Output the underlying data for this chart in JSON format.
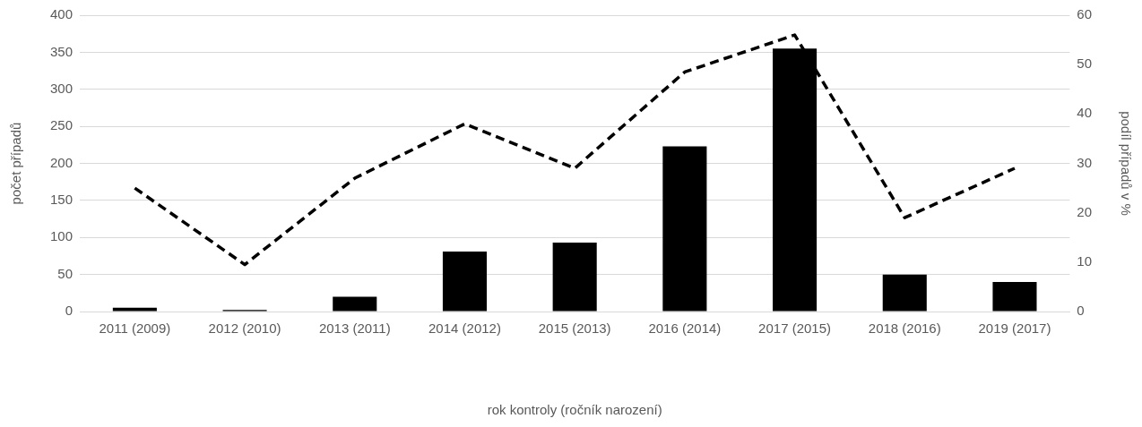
{
  "chart_data": {
    "type": "bar",
    "xlabel": "rok kontroly (ročník narození)",
    "ylabel": "počet případů",
    "y2label": "podíl případů v %",
    "categories": [
      "2011 (2009)",
      "2012 (2010)",
      "2013 (2011)",
      "2014 (2012)",
      "2015 (2013)",
      "2016 (2014)",
      "2017 (2015)",
      "2018 (2016)",
      "2019 (2017)"
    ],
    "series": [
      {
        "color": "#000000",
        "values": [
          5,
          2,
          20,
          81,
          93,
          223,
          355,
          50,
          40
        ]
      },
      {
        "type": "line",
        "axis": "y2",
        "color": "#000000",
        "line_style": "dashed",
        "values": [
          25,
          9.5,
          27,
          38,
          29,
          48.5,
          56,
          19,
          29
        ]
      }
    ],
    "ylim": [
      0,
      400
    ],
    "yticks": [
      0,
      50,
      100,
      150,
      200,
      250,
      300,
      350,
      400
    ],
    "y2lim": [
      0,
      60
    ],
    "y2ticks": [
      0,
      10,
      20,
      30,
      40,
      50,
      60
    ],
    "grid": "y",
    "legend": false,
    "marker": "none"
  }
}
